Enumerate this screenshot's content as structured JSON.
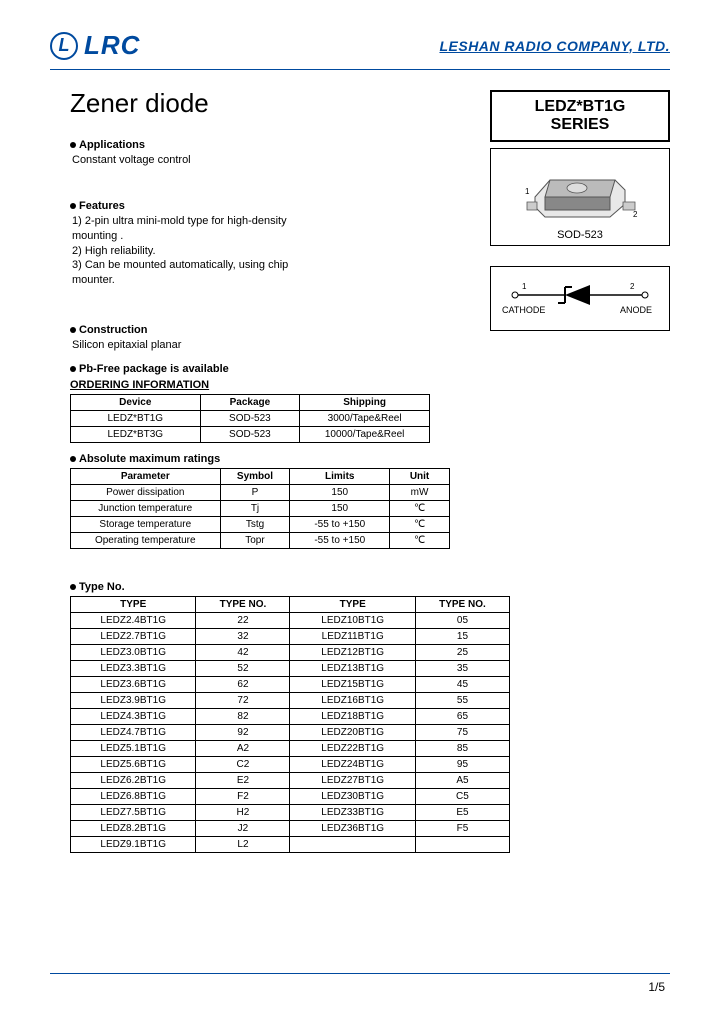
{
  "header": {
    "logo_letter": "L",
    "logo_text": "LRC",
    "company": "LESHAN RADIO COMPANY, LTD."
  },
  "title": "Zener diode",
  "series_box": {
    "line1": "LEDZ*BT1G",
    "line2": "SERIES"
  },
  "package_box": {
    "label": "SOD-523",
    "pin1": "1",
    "pin2": "2"
  },
  "symbol_box": {
    "left_num": "1",
    "left_label": "CATHODE",
    "right_num": "2",
    "right_label": "ANODE"
  },
  "sections": {
    "applications": {
      "head": "Applications",
      "body": "Constant voltage control"
    },
    "features": {
      "head": "Features",
      "items": [
        "1) 2-pin ultra mini-mold type for high-density mounting .",
        "2) High reliability.",
        "3) Can be mounted automatically, using chip mounter."
      ]
    },
    "construction": {
      "head": "Construction",
      "body": "Silicon epitaxial planar"
    },
    "pbfree": "Pb-Free package is available"
  },
  "ordering": {
    "title": "ORDERING INFORMATION",
    "headers": [
      "Device",
      "Package",
      "Shipping"
    ],
    "rows": [
      [
        "LEDZ*BT1G",
        "SOD-523",
        "3000/Tape&Reel"
      ],
      [
        "LEDZ*BT3G",
        "SOD-523",
        "10000/Tape&Reel"
      ]
    ]
  },
  "ratings": {
    "head": "Absolute maximum ratings",
    "headers": [
      "Parameter",
      "Symbol",
      "Limits",
      "Unit"
    ],
    "rows": [
      [
        "Power dissipation",
        "P",
        "150",
        "mW"
      ],
      [
        "Junction temperature",
        "Tj",
        "150",
        "℃"
      ],
      [
        "Storage temperature",
        "Tstg",
        "-55 to +150",
        "℃"
      ],
      [
        "Operating temperature",
        "Topr",
        "-55 to +150",
        "℃"
      ]
    ]
  },
  "typeno": {
    "head": "Type No.",
    "headers": [
      "TYPE",
      "TYPE  NO.",
      "TYPE",
      "TYPE  NO."
    ],
    "rows": [
      [
        "LEDZ2.4BT1G",
        "22",
        "LEDZ10BT1G",
        "05"
      ],
      [
        "LEDZ2.7BT1G",
        "32",
        "LEDZ11BT1G",
        "15"
      ],
      [
        "LEDZ3.0BT1G",
        "42",
        "LEDZ12BT1G",
        "25"
      ],
      [
        "LEDZ3.3BT1G",
        "52",
        "LEDZ13BT1G",
        "35"
      ],
      [
        "LEDZ3.6BT1G",
        "62",
        "LEDZ15BT1G",
        "45"
      ],
      [
        "LEDZ3.9BT1G",
        "72",
        "LEDZ16BT1G",
        "55"
      ],
      [
        "LEDZ4.3BT1G",
        "82",
        "LEDZ18BT1G",
        "65"
      ],
      [
        "LEDZ4.7BT1G",
        "92",
        "LEDZ20BT1G",
        "75"
      ],
      [
        "LEDZ5.1BT1G",
        "A2",
        "LEDZ22BT1G",
        "85"
      ],
      [
        "LEDZ5.6BT1G",
        "C2",
        "LEDZ24BT1G",
        "95"
      ],
      [
        "LEDZ6.2BT1G",
        "E2",
        "LEDZ27BT1G",
        "A5"
      ],
      [
        "LEDZ6.8BT1G",
        "F2",
        "LEDZ30BT1G",
        "C5"
      ],
      [
        "LEDZ7.5BT1G",
        "H2",
        "LEDZ33BT1G",
        "E5"
      ],
      [
        "LEDZ8.2BT1G",
        "J2",
        "LEDZ36BT1G",
        "F5"
      ],
      [
        "LEDZ9.1BT1G",
        "L2",
        "",
        ""
      ]
    ]
  },
  "page": "1/5",
  "colors": {
    "brand": "#004a9f",
    "text": "#000000",
    "bg": "#ffffff"
  }
}
